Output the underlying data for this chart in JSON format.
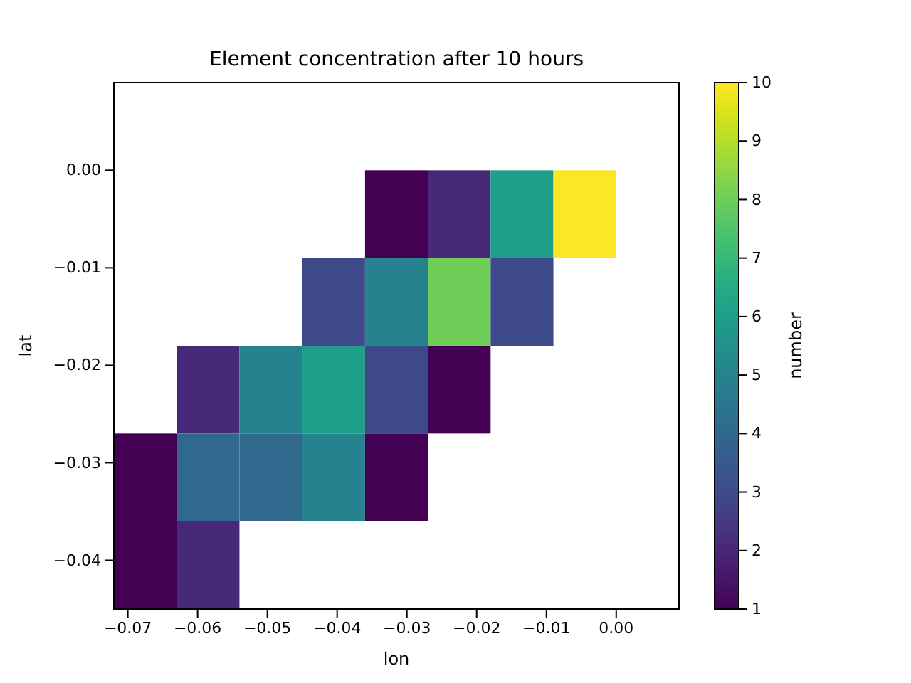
{
  "chart_data": {
    "type": "heatmap",
    "title": "Element concentration after 10 hours",
    "xlabel": "lon",
    "ylabel": "lat",
    "clabel": "number",
    "xlim": [
      -0.072,
      0.009
    ],
    "ylim": [
      -0.045,
      0.009
    ],
    "xticks": [
      {
        "value": -0.07,
        "label": "−0.07"
      },
      {
        "value": -0.06,
        "label": "−0.06"
      },
      {
        "value": -0.05,
        "label": "−0.05"
      },
      {
        "value": -0.04,
        "label": "−0.04"
      },
      {
        "value": -0.03,
        "label": "−0.03"
      },
      {
        "value": -0.02,
        "label": "−0.02"
      },
      {
        "value": -0.01,
        "label": "−0.01"
      },
      {
        "value": 0,
        "label": "0.00"
      }
    ],
    "yticks": [
      {
        "value": 0,
        "label": "0.00"
      },
      {
        "value": -0.01,
        "label": "−0.01"
      },
      {
        "value": -0.02,
        "label": "−0.02"
      },
      {
        "value": -0.03,
        "label": "−0.03"
      },
      {
        "value": -0.04,
        "label": "−0.04"
      }
    ],
    "clim": [
      1,
      10
    ],
    "cticks": [
      1,
      2,
      3,
      4,
      5,
      6,
      7,
      8,
      9,
      10
    ],
    "x": [
      -0.0675,
      -0.0585,
      -0.0495,
      -0.0405,
      -0.0315,
      -0.0225,
      -0.0135,
      -0.0045
    ],
    "y": [
      -0.0045,
      -0.0135,
      -0.0225,
      -0.0315,
      -0.0405
    ],
    "cells": [
      [
        null,
        null,
        null,
        null,
        1,
        2,
        6,
        10
      ],
      [
        null,
        null,
        null,
        3,
        5,
        8,
        3,
        null
      ],
      [
        null,
        2,
        5,
        6,
        3,
        1,
        null,
        null
      ],
      [
        1,
        4,
        4,
        5,
        1,
        null,
        null,
        null
      ],
      [
        1,
        2,
        null,
        null,
        null,
        null,
        null,
        null
      ]
    ]
  }
}
